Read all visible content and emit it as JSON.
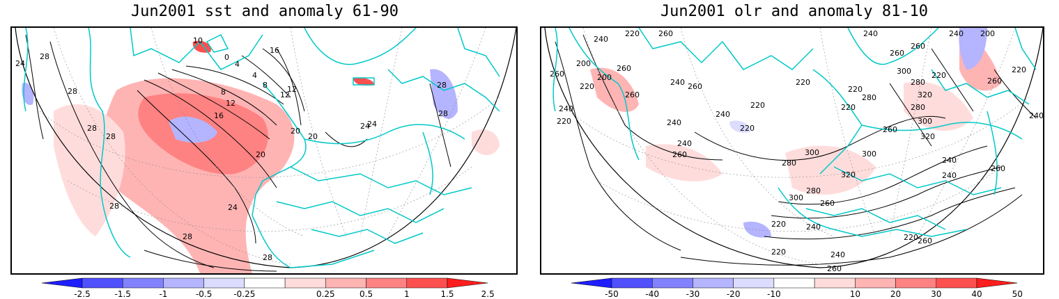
{
  "panels": [
    {
      "title": "Jun2001 sst and anomaly 61-90",
      "contour_labels": [
        "28",
        "24",
        "28",
        "28",
        "28",
        "28",
        "28",
        "24",
        "20",
        "16",
        "12",
        "8",
        "4",
        "0",
        "10",
        "4",
        "8",
        "12",
        "16",
        "12",
        "20",
        "24",
        "20",
        "24",
        "28",
        "28",
        "28"
      ],
      "colorbar": {
        "labels": [
          "-2.5",
          "-1.5",
          "-1",
          "-0.5",
          "-0.25",
          "0.25",
          "0.5",
          "1",
          "1.5",
          "2.5"
        ],
        "colors": [
          "#1e1eff",
          "#5050ff",
          "#8282ff",
          "#b4b4ff",
          "#dcdcff",
          "#ffffff",
          "#ffdcdc",
          "#ffb4b4",
          "#ff8282",
          "#ff5050",
          "#ff1e1e"
        ]
      }
    },
    {
      "title": "Jun2001 olr and anomaly 81-10",
      "contour_labels": [
        "240",
        "220",
        "260",
        "200",
        "260",
        "200",
        "220",
        "240",
        "260",
        "220",
        "240",
        "260",
        "260",
        "240",
        "220",
        "240",
        "220",
        "220",
        "240",
        "260",
        "280",
        "300",
        "320",
        "280",
        "300",
        "260",
        "240",
        "220",
        "220",
        "240",
        "260",
        "280",
        "300",
        "320",
        "260",
        "240",
        "220",
        "220",
        "260",
        "240",
        "260",
        "240",
        "260",
        "220",
        "300",
        "280",
        "260",
        "240",
        "220",
        "200",
        "220",
        "240",
        "260",
        "280",
        "300",
        "320"
      ],
      "colorbar": {
        "labels": [
          "-50",
          "-40",
          "-30",
          "-20",
          "-10",
          "10",
          "20",
          "30",
          "40",
          "50"
        ],
        "colors": [
          "#1e1eff",
          "#5050ff",
          "#8282ff",
          "#b4b4ff",
          "#dcdcff",
          "#ffffff",
          "#ffdcdc",
          "#ffb4b4",
          "#ff8282",
          "#ff5050",
          "#ff1e1e"
        ]
      }
    }
  ]
}
